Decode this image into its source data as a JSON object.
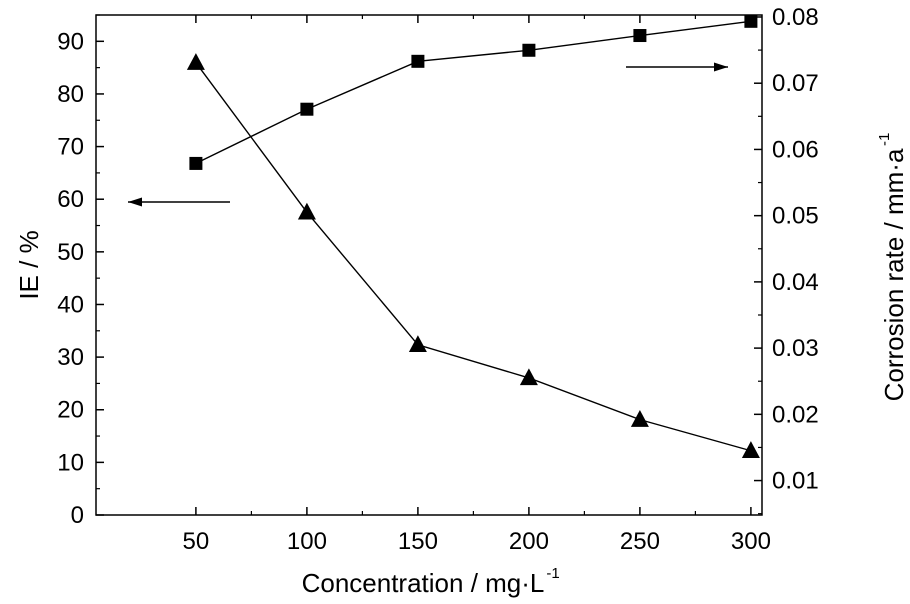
{
  "chart_data": {
    "type": "line",
    "title": "",
    "x": [
      50,
      100,
      150,
      200,
      250,
      300
    ],
    "xlabel": {
      "text": "Concentration / mg·L",
      "superscript": "-1"
    },
    "xlim": [
      5,
      305
    ],
    "xticks": [
      50,
      100,
      150,
      200,
      250,
      300
    ],
    "y_left": {
      "label": "IE / %",
      "lim": [
        0,
        95
      ],
      "ticks": [
        0,
        10,
        20,
        30,
        40,
        50,
        60,
        70,
        80,
        90
      ]
    },
    "y_right": {
      "label": {
        "text": "Corrosion rate / mm·a",
        "superscript": "-1"
      },
      "lim": [
        0.0048,
        0.0803
      ],
      "ticks": [
        0.01,
        0.02,
        0.03,
        0.04,
        0.05,
        0.06,
        0.07,
        0.08
      ],
      "tick_labels": [
        "0.01",
        "0.02",
        "0.03",
        "0.04",
        "0.05",
        "0.06",
        "0.07",
        "0.08"
      ]
    },
    "series": [
      {
        "name": "IE",
        "axis": "left",
        "marker": "square",
        "values": [
          66.8,
          77.1,
          86.2,
          88.3,
          91.1,
          93.8
        ]
      },
      {
        "name": "Corrosion rate",
        "axis": "right",
        "marker": "triangle",
        "values": [
          0.0731,
          0.0505,
          0.0305,
          0.0255,
          0.0192,
          0.0145
        ]
      }
    ],
    "annotations": [
      {
        "type": "arrow",
        "direction": "left",
        "indicates": "IE uses left axis"
      },
      {
        "type": "arrow",
        "direction": "right",
        "indicates": "Corrosion rate uses right axis"
      }
    ],
    "grid": false,
    "legend": "none"
  }
}
